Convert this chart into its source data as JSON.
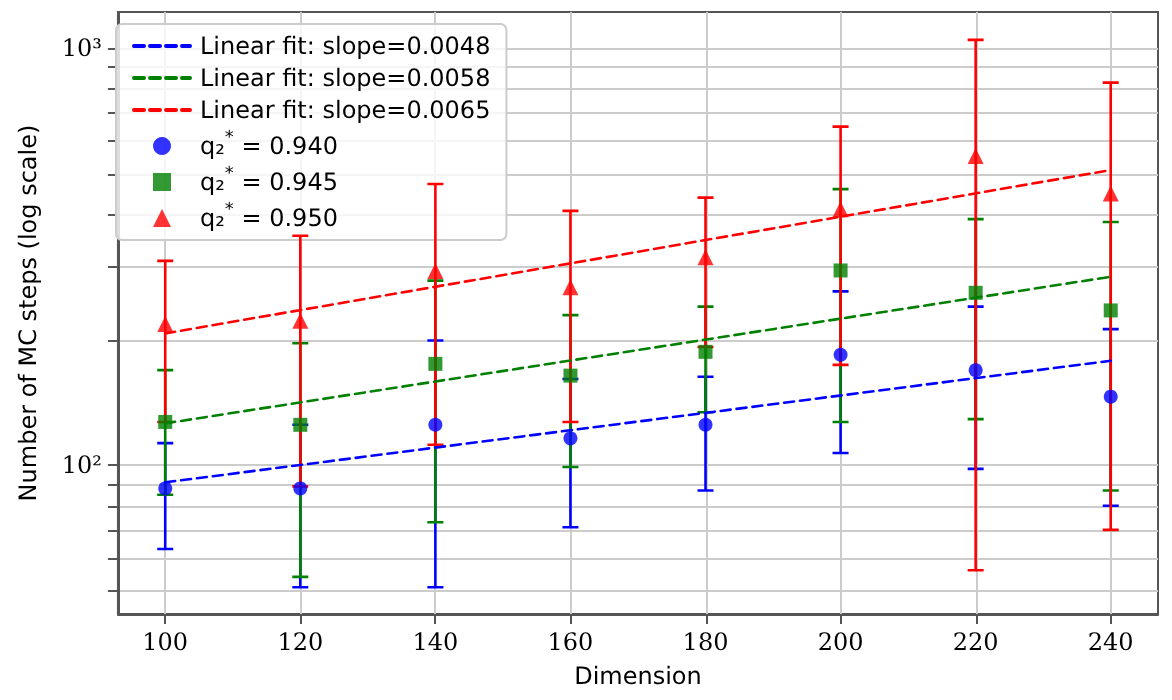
{
  "chart_data": {
    "type": "scatter",
    "xlabel": "Dimension",
    "ylabel": "Number of MC steps (log scale)",
    "log": "y",
    "grid": true,
    "legend": "top left",
    "x": [
      100,
      120,
      140,
      160,
      180,
      200,
      220,
      240
    ],
    "xlim": [
      93,
      247
    ],
    "xticks": [
      100,
      120,
      140,
      160,
      180,
      200,
      220,
      240
    ],
    "ylim": [
      44,
      1220
    ],
    "yticks": [
      {
        "value": 50,
        "label": null
      },
      {
        "value": 60,
        "label": null
      },
      {
        "value": 70,
        "label": null
      },
      {
        "value": 80,
        "label": null
      },
      {
        "value": 90,
        "label": null
      },
      {
        "value": 100,
        "label": "10²"
      },
      {
        "value": 200,
        "label": null
      },
      {
        "value": 300,
        "label": null
      },
      {
        "value": 400,
        "label": null
      },
      {
        "value": 500,
        "label": null
      },
      {
        "value": 600,
        "label": null
      },
      {
        "value": 700,
        "label": null
      },
      {
        "value": 800,
        "label": null
      },
      {
        "value": 900,
        "label": null
      },
      {
        "value": 1000,
        "label": "10³"
      }
    ],
    "series": [
      {
        "name": "Linear fit: slope=0.0048",
        "type": "line",
        "color": "#0000ff",
        "values": [
          91,
          null,
          null,
          null,
          null,
          null,
          null,
          178
        ],
        "line_style": "dashed",
        "marker": "none"
      },
      {
        "name": "Linear fit: slope=0.0058",
        "type": "line",
        "color": "#008000",
        "values": [
          126,
          null,
          null,
          null,
          null,
          null,
          null,
          283
        ],
        "line_style": "dashed",
        "marker": "none"
      },
      {
        "name": "Linear fit: slope=0.0065",
        "type": "line",
        "color": "#ff0000",
        "values": [
          207,
          null,
          null,
          null,
          null,
          null,
          null,
          510
        ],
        "line_style": "dashed",
        "marker": "none"
      },
      {
        "name": "q₂$^{*}$ = 0.940",
        "color": "#0000ff",
        "marker": "circle",
        "values": [
          88,
          88,
          125,
          116,
          125,
          184,
          169,
          146
        ],
        "errors": [
          25,
          37,
          74,
          45,
          38,
          77,
          71,
          66
        ]
      },
      {
        "name": "q₂$^{*}$ = 0.945",
        "color": "#008000",
        "marker": "square",
        "values": [
          127,
          125,
          175,
          164,
          187,
          293,
          259,
          235
        ],
        "errors": [
          42,
          71,
          102,
          65,
          53,
          166,
          130,
          148
        ]
      },
      {
        "name": "q₂$^{*}$ = 0.950",
        "color": "#ff0000",
        "marker": "triangle",
        "values": [
          218,
          222,
          292,
          267,
          315,
          411,
          551,
          448
        ],
        "errors": [
          91,
          133,
          180,
          140,
          123,
          237,
          495,
          378
        ]
      }
    ]
  }
}
